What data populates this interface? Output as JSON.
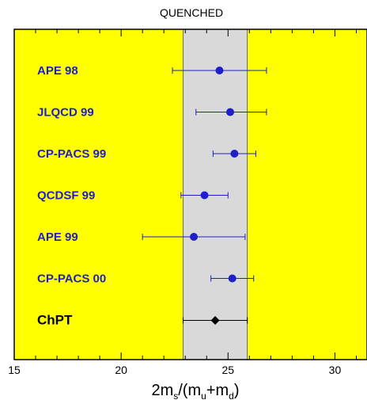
{
  "chart_data": {
    "type": "scatter",
    "title": "QUENCHED",
    "xlabel": {
      "parts": [
        "2m",
        "s",
        "/(m",
        "u",
        "+m",
        "d",
        ")"
      ]
    },
    "xlim": [
      15,
      31.5
    ],
    "x_ticks": [
      {
        "value": 15,
        "label": "15"
      },
      {
        "value": 20,
        "label": "20"
      },
      {
        "value": 25,
        "label": "25"
      },
      {
        "value": 30,
        "label": "30"
      }
    ],
    "band": {
      "low": 22.9,
      "high": 25.9
    },
    "points": [
      {
        "label": "APE 98",
        "value": 24.6,
        "err_low": 22.4,
        "err_high": 26.8,
        "marker": "circle",
        "color": "#1f1fc8"
      },
      {
        "label": "JLQCD 99",
        "value": 25.1,
        "err_low": 23.5,
        "err_high": 26.8,
        "marker": "circle",
        "color": "#1f1fc8"
      },
      {
        "label": "CP-PACS 99",
        "value": 25.3,
        "err_low": 24.3,
        "err_high": 26.3,
        "marker": "circle",
        "color": "#1f1fc8"
      },
      {
        "label": "QCDSF 99",
        "value": 23.9,
        "err_low": 22.8,
        "err_high": 25.0,
        "marker": "circle",
        "color": "#1f1fc8"
      },
      {
        "label": "APE 99",
        "value": 23.4,
        "err_low": 21.0,
        "err_high": 25.8,
        "marker": "circle",
        "color": "#1f1fc8"
      },
      {
        "label": "CP-PACS 00",
        "value": 25.2,
        "err_low": 24.2,
        "err_high": 26.2,
        "marker": "circle",
        "color": "#1f1fc8"
      },
      {
        "label": "ChPT",
        "value": 24.4,
        "err_low": 22.9,
        "err_high": 25.9,
        "marker": "diamond",
        "color": "#000000"
      }
    ],
    "colors": {
      "background": "#ffff00",
      "band": "#d9d9d9",
      "series": "#1f1fc8",
      "reference": "#000000"
    }
  }
}
